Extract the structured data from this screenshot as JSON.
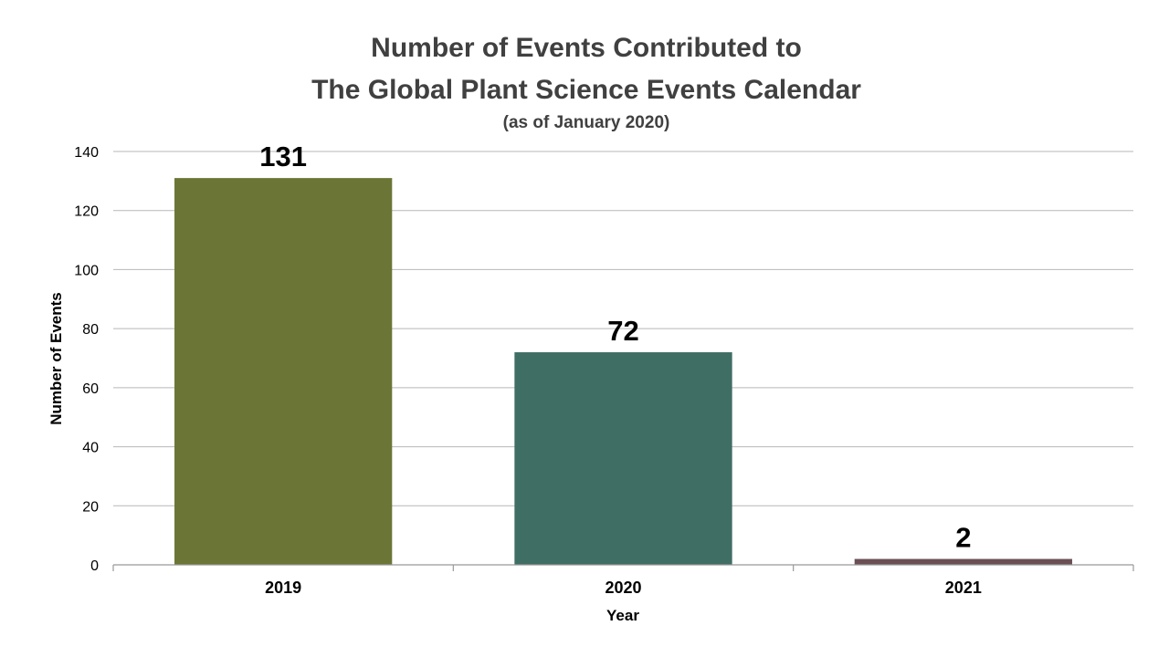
{
  "chart_data": {
    "type": "bar",
    "title_lines": [
      "Number of Events Contributed to",
      "The Global Plant Science Events Calendar"
    ],
    "subtitle": "(as of January 2020)",
    "xlabel": "Year",
    "ylabel": "Number of Events",
    "categories": [
      "2019",
      "2020",
      "2021"
    ],
    "values": [
      131,
      72,
      2
    ],
    "data_labels": [
      "131",
      "72",
      "2"
    ],
    "bar_colors": [
      "#6B7536",
      "#3F6E64",
      "#6B4F55"
    ],
    "ylim": [
      0,
      140
    ],
    "yticks": [
      0,
      20,
      40,
      60,
      80,
      100,
      120,
      140
    ],
    "ytick_labels": [
      "0",
      "20",
      "40",
      "60",
      "80",
      "100",
      "120",
      "140"
    ],
    "grid": true,
    "legend": "none"
  }
}
